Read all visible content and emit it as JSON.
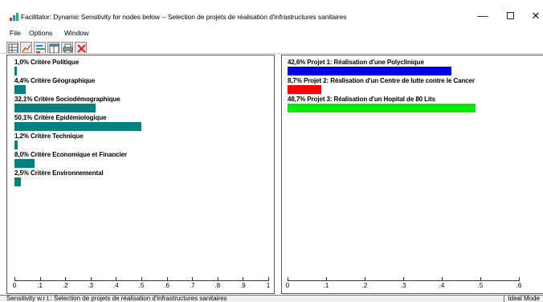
{
  "window": {
    "title": "Facilitator: Dynamic Sensitivity for nodes below -- Selection de projets de réalisation d'infrastructures sanitaires",
    "minimize_glyph": "—",
    "close_glyph": "✕"
  },
  "menu": [
    "File",
    "Options",
    "Window"
  ],
  "toolbar": {
    "icons": [
      "grid-icon",
      "chart-icon",
      "bars-icon",
      "table-icon",
      "print-icon",
      "close-icon"
    ],
    "close_color": "#e0201e"
  },
  "left_chart": {
    "type": "bar",
    "rows": [
      {
        "label": "1,0% Critère Politique",
        "value": 0.01,
        "color": "#008080"
      },
      {
        "label": "4,4% Critère Géographique",
        "value": 0.044,
        "color": "#008080"
      },
      {
        "label": "32,1% Critère Sociodémographique",
        "value": 0.321,
        "color": "#008080"
      },
      {
        "label": "50,1% Critère Epidémiologique",
        "value": 0.501,
        "color": "#008080"
      },
      {
        "label": "1,2% Critère Technique",
        "value": 0.012,
        "color": "#008080"
      },
      {
        "label": "8,0% Critère Economique et Financier",
        "value": 0.08,
        "color": "#008080"
      },
      {
        "label": "2,5% Critère Environnemental",
        "value": 0.025,
        "color": "#008080"
      }
    ],
    "axis_ticks": [
      "0",
      ".1",
      ".2",
      ".3",
      ".4",
      ".5",
      ".6",
      ".7",
      ".8",
      ".9",
      "1"
    ],
    "axis_max": 1.0
  },
  "right_chart": {
    "type": "bar",
    "rows": [
      {
        "label": "42,6% Projet 1: Réalisation d'une Polyclinique",
        "value": 0.426,
        "color": "#0000e0"
      },
      {
        "label": "8,7% Projet 2: Réalisation d'un Centre de lutte contre le Cancer",
        "value": 0.087,
        "color": "#ff0000"
      },
      {
        "label": "48,7% Projet 3: Réalisation d'un Hopital de 80 Lits",
        "value": 0.487,
        "color": "#00ee00"
      }
    ],
    "axis_ticks": [
      "0",
      ".1",
      ".2",
      ".3",
      ".4",
      ".5",
      ".6"
    ],
    "axis_max": 0.6
  },
  "status": {
    "text": "Sensitivity w.r.t.: Selection de projets de réalisation d'infrastructures sanitaires",
    "mode": "Ideal Mode"
  }
}
